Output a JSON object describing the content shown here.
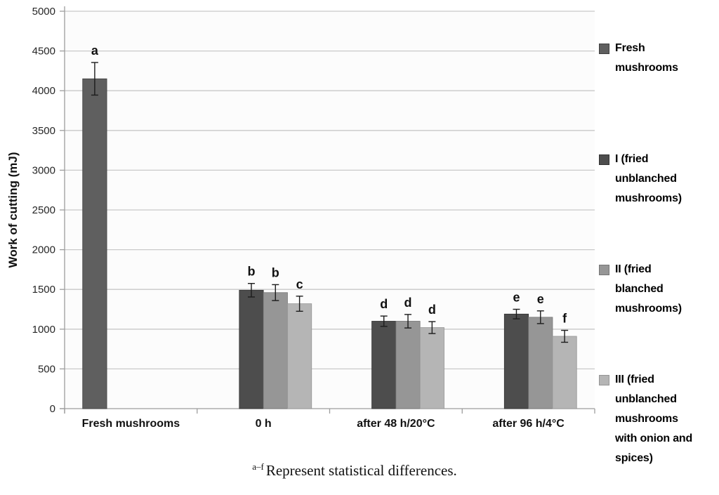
{
  "chart_data": {
    "type": "bar",
    "title": "",
    "xlabel": "",
    "ylabel": "Work of cutting (mJ)",
    "ylim": [
      0,
      5000
    ],
    "ytick_step": 500,
    "grid": true,
    "legend_position": "right",
    "categories": [
      "Fresh mushrooms",
      "0 h",
      "after 48 h/20°C",
      "after 96 h/4°C"
    ],
    "series": [
      {
        "name": "Fresh mushrooms",
        "color": "#5f5f5f",
        "edge": "#3f3f3f",
        "values": [
          4150,
          null,
          null,
          null
        ],
        "errors": [
          205,
          null,
          null,
          null
        ],
        "letters": [
          "a",
          null,
          null,
          null
        ]
      },
      {
        "name": "I (fried unblanched mushrooms)",
        "color": "#4d4d4d",
        "edge": "#333333",
        "values": [
          null,
          1490,
          1100,
          1190
        ],
        "errors": [
          null,
          85,
          65,
          60
        ],
        "letters": [
          null,
          "b",
          "d",
          "e"
        ]
      },
      {
        "name": "II (fried blanched mushrooms)",
        "color": "#969696",
        "edge": "#757575",
        "values": [
          null,
          1460,
          1100,
          1150
        ],
        "errors": [
          null,
          100,
          85,
          80
        ],
        "letters": [
          null,
          "b",
          "d",
          "e"
        ]
      },
      {
        "name": "III (fried unblanched mushrooms with onion and spices)",
        "color": "#b5b5b5",
        "edge": "#959595",
        "values": [
          null,
          1320,
          1020,
          910
        ],
        "errors": [
          null,
          95,
          75,
          75
        ],
        "letters": [
          null,
          "c",
          "d",
          "f"
        ]
      }
    ],
    "colors": {
      "gridline": "#c9c9c9",
      "axis": "#9d9d9d",
      "plot_background": "#fcfcfc",
      "error_bar": "#1c1c1c"
    }
  },
  "footnote": {
    "superscript": "a–f",
    "text": "Represent statistical differences."
  }
}
